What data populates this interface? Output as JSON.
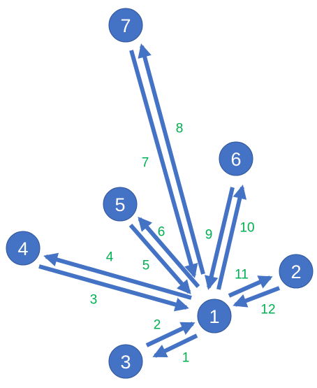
{
  "colors": {
    "node_fill": "#4472C4",
    "node_stroke": "#2F5597",
    "edge": "#4472C4",
    "edge_label": "#00B050",
    "node_text": "#ffffff"
  },
  "nodes": [
    {
      "id": "1",
      "label": "1"
    },
    {
      "id": "2",
      "label": "2"
    },
    {
      "id": "3",
      "label": "3"
    },
    {
      "id": "4",
      "label": "4"
    },
    {
      "id": "5",
      "label": "5"
    },
    {
      "id": "6",
      "label": "6"
    },
    {
      "id": "7",
      "label": "7"
    }
  ],
  "edges": [
    {
      "label": "1",
      "from": "1",
      "to": "3"
    },
    {
      "label": "2",
      "from": "3",
      "to": "1"
    },
    {
      "label": "3",
      "from": "4",
      "to": "1"
    },
    {
      "label": "4",
      "from": "1",
      "to": "4"
    },
    {
      "label": "5",
      "from": "5",
      "to": "1"
    },
    {
      "label": "6",
      "from": "1",
      "to": "5"
    },
    {
      "label": "7",
      "from": "7",
      "to": "1"
    },
    {
      "label": "8",
      "from": "1",
      "to": "7"
    },
    {
      "label": "9",
      "from": "6",
      "to": "1"
    },
    {
      "label": "10",
      "from": "1",
      "to": "6"
    },
    {
      "label": "11",
      "from": "1",
      "to": "2"
    },
    {
      "label": "12",
      "from": "2",
      "to": "1"
    }
  ]
}
